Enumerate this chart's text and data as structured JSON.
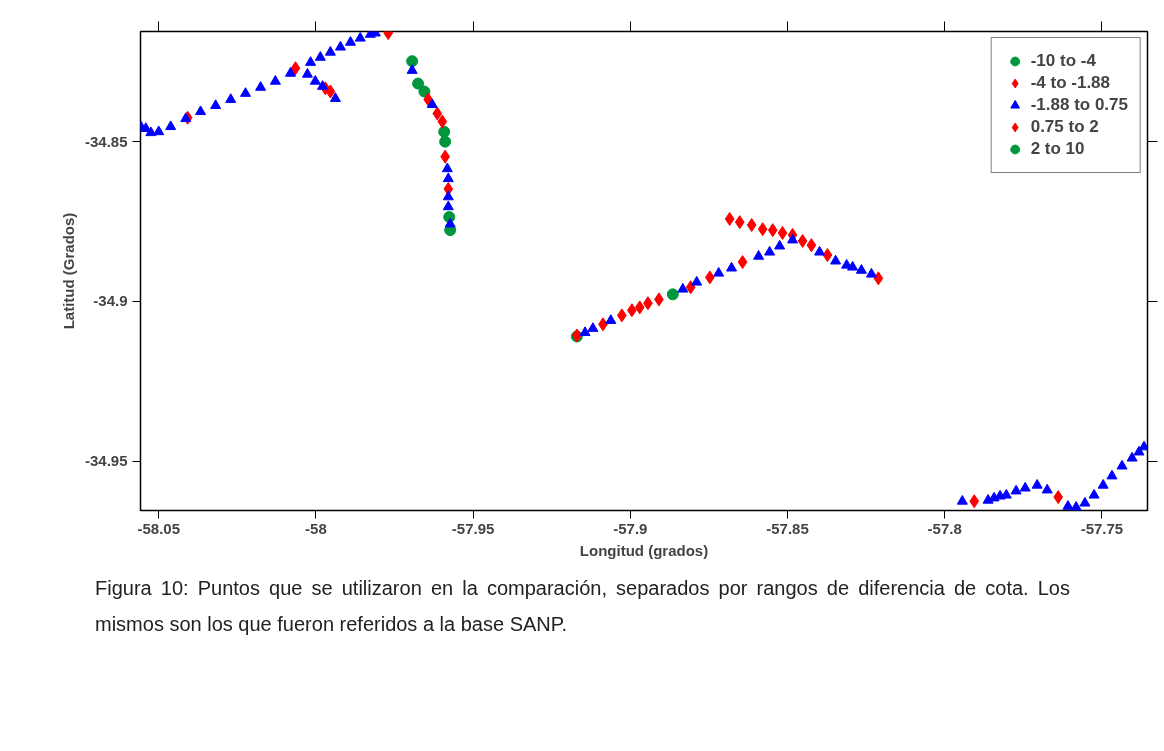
{
  "chart_data": {
    "type": "scatter",
    "xlabel": "Longitud (grados)",
    "ylabel": "Latitud (Grados)",
    "xlim": [
      -58.0558,
      -57.7355
    ],
    "ylim": [
      -34.9655,
      -34.8155
    ],
    "xticks": [
      -58.05,
      -58,
      -57.95,
      -57.9,
      -57.85,
      -57.8,
      -57.75
    ],
    "yticks": [
      -34.95,
      -34.9,
      -34.85
    ],
    "grid": false,
    "legend": "top right",
    "annotations": [
      "Figura 10: Puntos que se utilizaron en la comparación, separados por rangos de diferencia de cota. Los mismos son los que fueron referidos a la base SANP."
    ],
    "series": [
      {
        "name": "-10 to -4",
        "color": "#00963c",
        "marker": "circle"
      },
      {
        "name": "-4 to -1.88",
        "color": "#ff0000",
        "marker": "diamond"
      },
      {
        "name": "-1.88 to 0.75",
        "color": "#0000ff",
        "marker": "triangle",
        "x": [
          -58.0557,
          -58.0541,
          -58.0525,
          -58.05,
          -58.0462,
          -58.0414,
          -58.0367,
          -58.0319,
          -58.0271,
          -58.0224,
          -58.0176,
          -58.0129,
          -58.0081,
          -58.0017,
          -57.9986,
          -57.9954,
          -57.9922,
          -57.989,
          -57.9859,
          -57.9827,
          -57.9811,
          -58.0027,
          -58.0002,
          -57.9979,
          -57.9938,
          -57.9694,
          -57.963,
          -57.9582,
          -57.9579,
          -57.9579,
          -57.9579,
          -57.9573,
          -57.9144,
          -57.9119,
          -57.9062,
          -57.8833,
          -57.8789,
          -57.8719,
          -57.8678,
          -57.8592,
          -57.8557,
          -57.8525,
          -57.8484,
          -57.8398,
          -57.8347,
          -57.8312,
          -57.8293,
          -57.8265,
          -57.8233,
          -57.7944,
          -57.7862,
          -57.7843,
          -57.7824,
          -57.7804,
          -57.7773,
          -57.7744,
          -57.7706,
          -57.7674,
          -57.7608,
          -57.7582,
          -57.7554,
          -57.7525,
          -57.7496,
          -57.7468,
          -57.7436,
          -57.7404,
          -57.7382,
          -57.7366
        ],
        "values": [
          -34.8453,
          -34.8459,
          -34.8472,
          -34.8469,
          -34.8453,
          -34.8428,
          -34.8406,
          -34.8387,
          -34.8368,
          -34.8349,
          -34.833,
          -34.8311,
          -34.8286,
          -34.8252,
          -34.8236,
          -34.822,
          -34.8204,
          -34.8189,
          -34.8176,
          -34.8164,
          -34.816,
          -34.8289,
          -34.8311,
          -34.8327,
          -34.8365,
          -34.8277,
          -34.8384,
          -34.8585,
          -34.8616,
          -34.8673,
          -34.8704,
          -34.8758,
          -34.9098,
          -34.9085,
          -34.906,
          -34.8962,
          -34.894,
          -34.8912,
          -34.8896,
          -34.8859,
          -34.8846,
          -34.8827,
          -34.8808,
          -34.8846,
          -34.8874,
          -34.8887,
          -34.8893,
          -34.8903,
          -34.8915,
          -34.9626,
          -34.9623,
          -34.9616,
          -34.961,
          -34.9607,
          -34.9594,
          -34.9585,
          -34.9576,
          -34.9591,
          -34.9642,
          -34.9645,
          -34.9632,
          -34.9607,
          -34.9576,
          -34.9547,
          -34.9516,
          -34.9491,
          -34.9472,
          -34.9456
        ]
      },
      {
        "name": "0.75 to 2",
        "color": "#ff0000",
        "marker": "diamond",
        "x": [
          -58.0408,
          -58.0065,
          -57.977,
          -57.997,
          -57.9954,
          -57.9643,
          -57.9614,
          -57.9598,
          -57.9589,
          -57.9579,
          -57.917,
          -57.9087,
          -57.9027,
          -57.8995,
          -57.897,
          -57.8944,
          -57.8909,
          -57.8808,
          -57.8747,
          -57.8643,
          -57.8452,
          -57.8424,
          -57.8373,
          -57.8211,
          -57.8684,
          -57.8652,
          -57.8614,
          -57.8579,
          -57.8547,
          -57.8516,
          -57.8484,
          -57.7906,
          -57.7639
        ],
        "values": [
          -34.8425,
          -34.827,
          -34.816,
          -34.8333,
          -34.8343,
          -34.8368,
          -34.8412,
          -34.8437,
          -34.8547,
          -34.8648,
          -34.9107,
          -34.9072,
          -34.9044,
          -34.9028,
          -34.9019,
          -34.9006,
          -34.8994,
          -34.8956,
          -34.8925,
          -34.8877,
          -34.8811,
          -34.8824,
          -34.8855,
          -34.8928,
          -34.8742,
          -34.8752,
          -34.8761,
          -34.8774,
          -34.8777,
          -34.8786,
          -34.8792,
          -34.9626,
          -34.9613
        ]
      },
      {
        "name": "2 to 10",
        "color": "#00963c",
        "marker": "circle",
        "x": [
          -57.9694,
          -57.9675,
          -57.9655,
          -57.9592,
          -57.9589,
          -57.9576,
          -57.9573,
          -57.8865,
          -57.917
        ],
        "values": [
          -34.8248,
          -34.8318,
          -34.8343,
          -34.8469,
          -34.85,
          -34.8736,
          -34.8777,
          -34.8978,
          -34.911
        ]
      }
    ]
  }
}
